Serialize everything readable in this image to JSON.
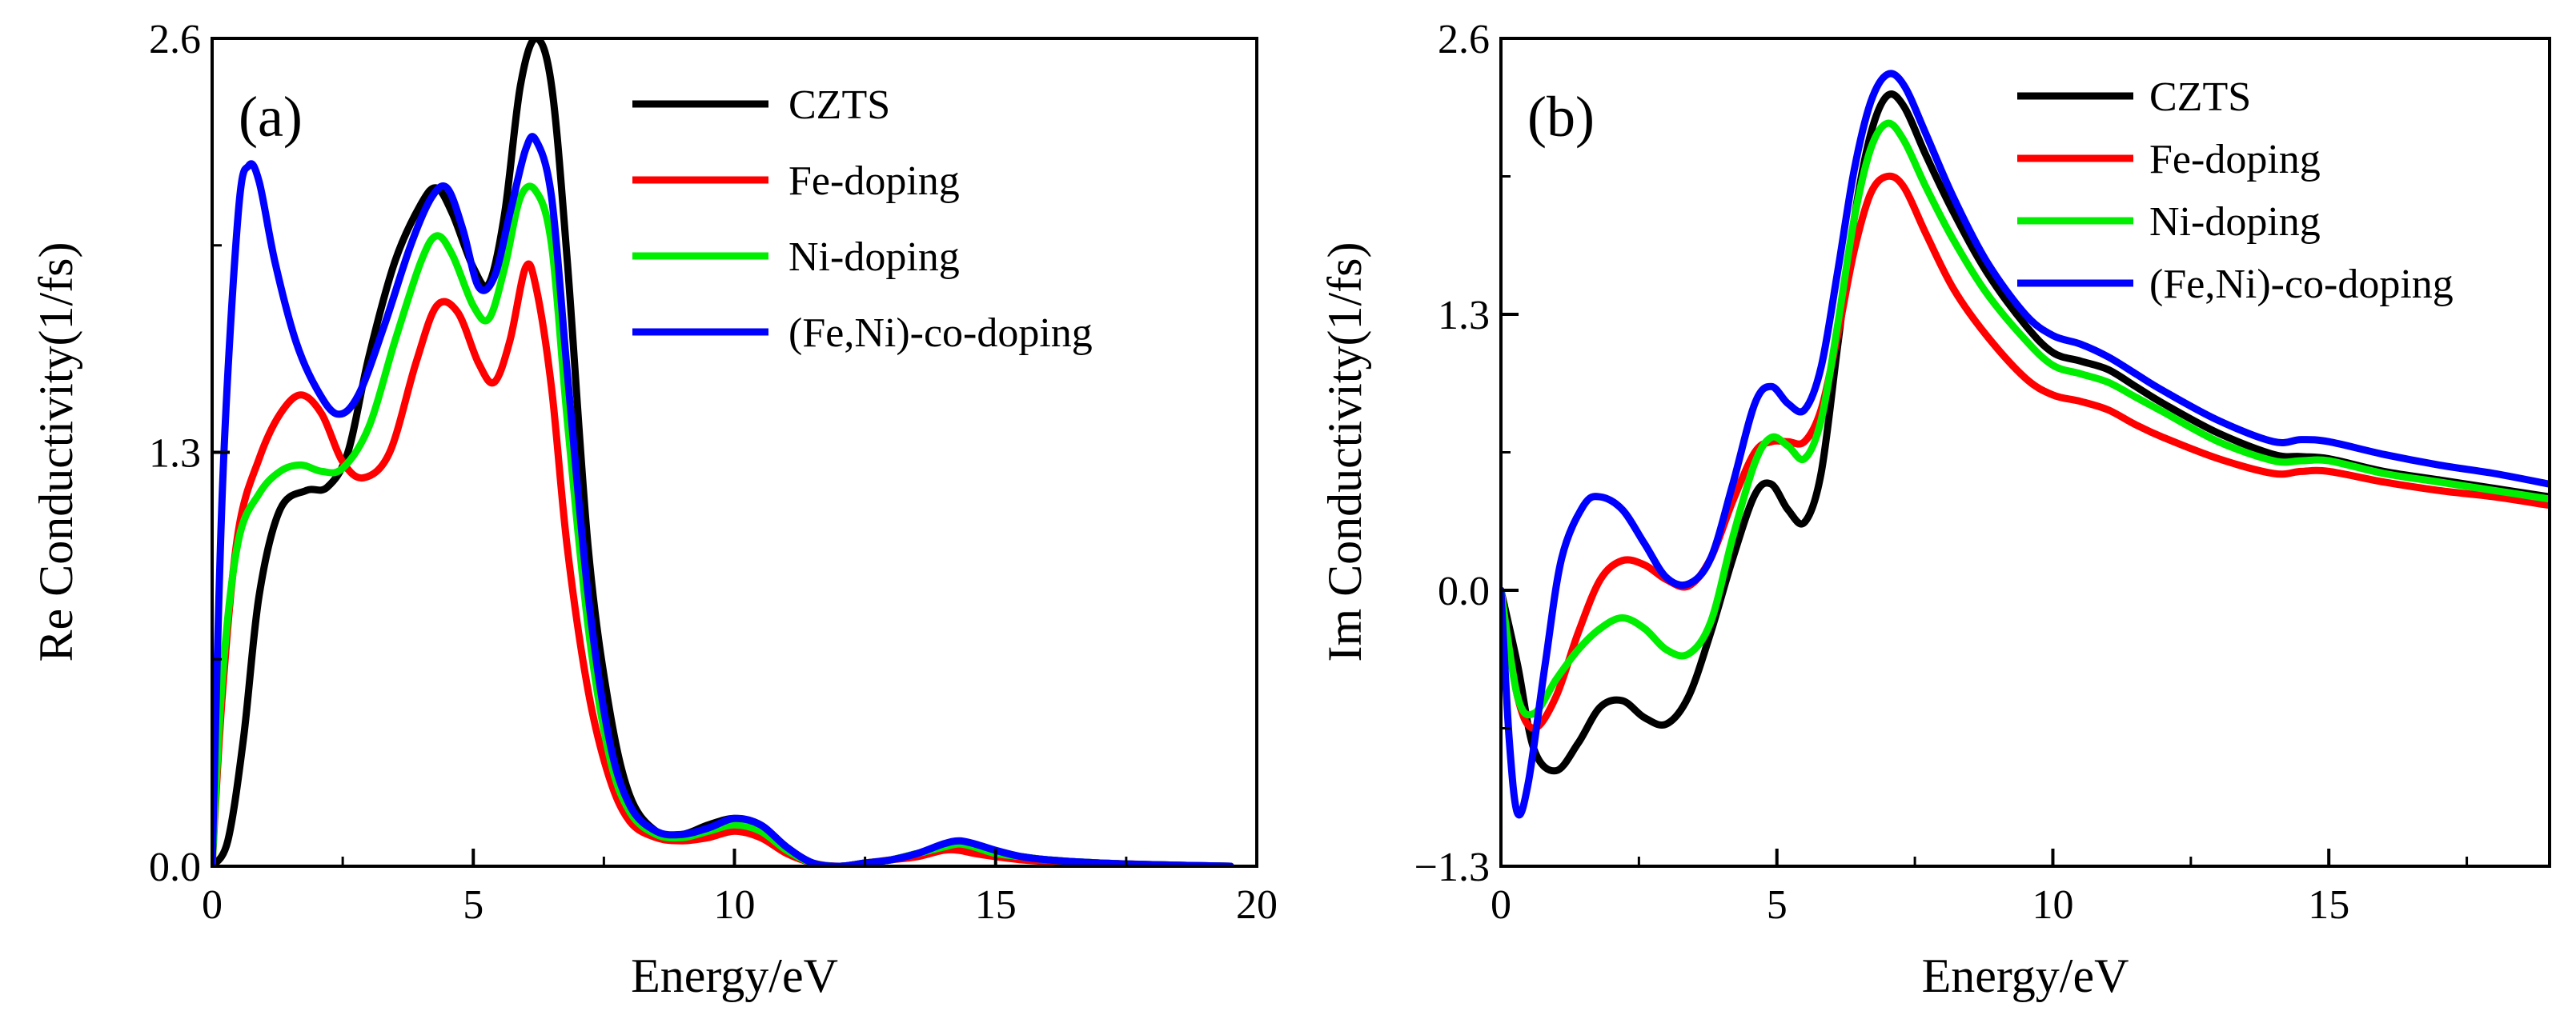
{
  "chart_data": [
    {
      "type": "line",
      "panel_label": "(a)",
      "xlabel": "Energy/eV",
      "ylabel": "Re Conductivity(1/fs)",
      "xlim": [
        0,
        20
      ],
      "ylim": [
        0,
        2.6
      ],
      "xticks": [
        0,
        5,
        10,
        15,
        20
      ],
      "yticks": [
        0.0,
        1.3,
        2.6
      ],
      "xtick_labels": [
        "0",
        "5",
        "10",
        "15",
        "20"
      ],
      "ytick_labels": [
        "0.0",
        "1.3",
        "2.6"
      ],
      "legend": "top-right",
      "grid": false,
      "series": [
        {
          "name": "CZTS",
          "color": "#000000",
          "x": [
            0,
            0.3,
            0.6,
            0.9,
            1.3,
            1.8,
            2.2,
            2.6,
            3.0,
            3.5,
            4.0,
            4.3,
            4.6,
            5.0,
            5.3,
            5.6,
            5.9,
            6.2,
            6.5,
            6.8,
            7.2,
            7.6,
            8.0,
            8.5,
            9.0,
            9.5,
            10.0,
            10.5,
            11.0,
            11.5,
            12.0,
            12.5,
            13.0,
            13.5,
            14.0,
            14.3,
            14.6,
            15.0,
            15.5,
            16.0,
            17.0,
            18.0,
            19.5
          ],
          "y": [
            0,
            0.08,
            0.4,
            0.85,
            1.12,
            1.18,
            1.19,
            1.3,
            1.6,
            1.9,
            2.08,
            2.13,
            2.05,
            1.88,
            1.83,
            2.05,
            2.45,
            2.6,
            2.45,
            1.9,
            1.0,
            0.5,
            0.22,
            0.11,
            0.1,
            0.13,
            0.15,
            0.13,
            0.06,
            0.01,
            0.0,
            0.01,
            0.02,
            0.04,
            0.06,
            0.07,
            0.06,
            0.04,
            0.03,
            0.02,
            0.01,
            0.005,
            0
          ]
        },
        {
          "name": "Fe-doping",
          "color": "#ff0000",
          "x": [
            0,
            0.2,
            0.5,
            0.9,
            1.3,
            1.7,
            2.1,
            2.5,
            2.9,
            3.4,
            3.9,
            4.3,
            4.7,
            5.1,
            5.4,
            5.7,
            6.0,
            6.2,
            6.5,
            6.8,
            7.2,
            7.6,
            8.0,
            8.5,
            9.0,
            9.5,
            10.0,
            10.5,
            11.0,
            11.5,
            12.0,
            12.5,
            13.0,
            13.5,
            14.0,
            14.3,
            14.6,
            15.0,
            15.5,
            16.0,
            17.0,
            18.0,
            19.5
          ],
          "y": [
            0,
            0.55,
            1.05,
            1.28,
            1.42,
            1.48,
            1.42,
            1.27,
            1.22,
            1.3,
            1.58,
            1.76,
            1.74,
            1.58,
            1.52,
            1.65,
            1.88,
            1.82,
            1.5,
            1.0,
            0.55,
            0.28,
            0.14,
            0.09,
            0.08,
            0.09,
            0.11,
            0.09,
            0.04,
            0.01,
            0.0,
            0.01,
            0.02,
            0.03,
            0.05,
            0.05,
            0.04,
            0.03,
            0.02,
            0.015,
            0.01,
            0.005,
            0
          ]
        },
        {
          "name": "Ni-doping",
          "color": "#00ee00",
          "x": [
            0,
            0.2,
            0.5,
            0.9,
            1.3,
            1.7,
            2.1,
            2.5,
            3.0,
            3.5,
            4.0,
            4.3,
            4.6,
            5.0,
            5.3,
            5.6,
            5.9,
            6.2,
            6.5,
            6.8,
            7.2,
            7.6,
            8.0,
            8.5,
            9.0,
            9.5,
            10.0,
            10.5,
            11.0,
            11.5,
            12.0,
            12.5,
            13.0,
            13.5,
            14.0,
            14.3,
            14.6,
            15.0,
            15.5,
            16.0,
            17.0,
            18.0,
            19.5
          ],
          "y": [
            0,
            0.6,
            1.02,
            1.17,
            1.24,
            1.26,
            1.24,
            1.25,
            1.38,
            1.65,
            1.9,
            1.98,
            1.92,
            1.76,
            1.72,
            1.88,
            2.1,
            2.12,
            1.95,
            1.4,
            0.75,
            0.35,
            0.17,
            0.1,
            0.09,
            0.11,
            0.13,
            0.11,
            0.05,
            0.01,
            0.0,
            0.01,
            0.02,
            0.04,
            0.06,
            0.07,
            0.06,
            0.04,
            0.03,
            0.02,
            0.01,
            0.005,
            0
          ]
        },
        {
          "name": "(Fe,Ni)-co-doping",
          "color": "#0000ff",
          "x": [
            0,
            0.2,
            0.5,
            0.7,
            0.9,
            1.2,
            1.6,
            2.0,
            2.4,
            2.8,
            3.3,
            3.8,
            4.2,
            4.5,
            4.8,
            5.1,
            5.4,
            5.7,
            6.0,
            6.2,
            6.5,
            6.8,
            7.2,
            7.6,
            8.0,
            8.5,
            9.0,
            9.5,
            10.0,
            10.5,
            11.0,
            11.5,
            12.0,
            12.5,
            13.0,
            13.5,
            14.0,
            14.3,
            14.6,
            15.0,
            15.5,
            16.0,
            17.0,
            18.0,
            19.5
          ],
          "y": [
            0,
            1.2,
            2.05,
            2.2,
            2.15,
            1.9,
            1.65,
            1.5,
            1.42,
            1.48,
            1.7,
            1.95,
            2.1,
            2.13,
            2.0,
            1.82,
            1.85,
            2.05,
            2.25,
            2.28,
            2.1,
            1.55,
            0.85,
            0.4,
            0.19,
            0.11,
            0.1,
            0.12,
            0.15,
            0.13,
            0.06,
            0.01,
            0.0,
            0.01,
            0.02,
            0.04,
            0.07,
            0.08,
            0.07,
            0.05,
            0.03,
            0.02,
            0.01,
            0.005,
            0
          ]
        }
      ]
    },
    {
      "type": "line",
      "panel_label": "(b)",
      "xlabel": "Energy/eV",
      "ylabel": "Im Conductivity(1/fs)",
      "xlim": [
        0,
        19
      ],
      "ylim": [
        -1.3,
        2.6
      ],
      "xticks": [
        0,
        5,
        10,
        15
      ],
      "yticks": [
        -1.3,
        0.0,
        1.3,
        2.6
      ],
      "xtick_labels": [
        "0",
        "5",
        "10",
        "15"
      ],
      "ytick_labels": [
        "−1.3",
        "0.0",
        "1.3",
        "2.6"
      ],
      "legend": "top-right",
      "grid": false,
      "series": [
        {
          "name": "CZTS",
          "color": "#000000",
          "x": [
            0,
            0.3,
            0.6,
            1.0,
            1.4,
            1.8,
            2.2,
            2.6,
            3.0,
            3.4,
            3.8,
            4.2,
            4.6,
            4.9,
            5.2,
            5.5,
            5.8,
            6.1,
            6.4,
            6.7,
            7.0,
            7.3,
            7.7,
            8.2,
            8.8,
            9.5,
            10.0,
            10.5,
            11.0,
            11.5,
            12.0,
            13.0,
            14.0,
            14.5,
            15.0,
            16.0,
            17.0,
            18.0,
            19.0
          ],
          "y": [
            0,
            -0.35,
            -0.75,
            -0.85,
            -0.72,
            -0.55,
            -0.52,
            -0.6,
            -0.63,
            -0.5,
            -0.2,
            0.15,
            0.45,
            0.5,
            0.38,
            0.32,
            0.55,
            1.15,
            1.75,
            2.15,
            2.33,
            2.28,
            2.05,
            1.78,
            1.5,
            1.25,
            1.12,
            1.08,
            1.04,
            0.96,
            0.88,
            0.74,
            0.64,
            0.63,
            0.62,
            0.56,
            0.52,
            0.48,
            0.44
          ]
        },
        {
          "name": "Fe-doping",
          "color": "#ff0000",
          "x": [
            0,
            0.3,
            0.6,
            1.0,
            1.4,
            1.8,
            2.2,
            2.6,
            3.0,
            3.4,
            3.8,
            4.2,
            4.6,
            4.9,
            5.2,
            5.5,
            5.8,
            6.1,
            6.4,
            6.7,
            7.0,
            7.3,
            7.7,
            8.2,
            8.8,
            9.5,
            10.0,
            10.5,
            11.0,
            11.5,
            12.0,
            13.0,
            14.0,
            14.5,
            15.0,
            16.0,
            17.0,
            18.0,
            19.0
          ],
          "y": [
            0,
            -0.5,
            -0.65,
            -0.5,
            -0.2,
            0.05,
            0.14,
            0.12,
            0.05,
            0.02,
            0.15,
            0.42,
            0.65,
            0.7,
            0.7,
            0.7,
            0.85,
            1.2,
            1.6,
            1.87,
            1.95,
            1.9,
            1.68,
            1.42,
            1.2,
            1.0,
            0.92,
            0.89,
            0.85,
            0.78,
            0.72,
            0.62,
            0.55,
            0.56,
            0.56,
            0.51,
            0.47,
            0.44,
            0.4
          ]
        },
        {
          "name": "Ni-doping",
          "color": "#00ee00",
          "x": [
            0,
            0.3,
            0.6,
            1.0,
            1.4,
            1.8,
            2.2,
            2.6,
            3.0,
            3.4,
            3.8,
            4.2,
            4.6,
            4.9,
            5.2,
            5.5,
            5.8,
            6.1,
            6.4,
            6.7,
            7.0,
            7.3,
            7.7,
            8.2,
            8.8,
            9.5,
            10.0,
            10.5,
            11.0,
            11.5,
            12.0,
            13.0,
            14.0,
            14.5,
            15.0,
            16.0,
            17.0,
            18.0,
            19.0
          ],
          "y": [
            0,
            -0.5,
            -0.58,
            -0.42,
            -0.28,
            -0.18,
            -0.13,
            -0.18,
            -0.28,
            -0.3,
            -0.15,
            0.25,
            0.6,
            0.72,
            0.68,
            0.62,
            0.8,
            1.25,
            1.75,
            2.08,
            2.2,
            2.12,
            1.9,
            1.65,
            1.4,
            1.18,
            1.06,
            1.02,
            0.98,
            0.91,
            0.84,
            0.7,
            0.61,
            0.61,
            0.61,
            0.55,
            0.51,
            0.47,
            0.43
          ]
        },
        {
          "name": "(Fe,Ni)-co-doping",
          "color": "#0000ff",
          "x": [
            0,
            0.15,
            0.3,
            0.5,
            0.8,
            1.1,
            1.5,
            1.8,
            2.2,
            2.6,
            3.0,
            3.4,
            3.8,
            4.2,
            4.6,
            4.9,
            5.2,
            5.5,
            5.8,
            6.1,
            6.4,
            6.7,
            7.0,
            7.3,
            7.7,
            8.2,
            8.8,
            9.5,
            10.0,
            10.5,
            11.0,
            11.5,
            12.0,
            13.0,
            14.0,
            14.5,
            15.0,
            16.0,
            17.0,
            18.0,
            19.0
          ],
          "y": [
            0,
            -0.7,
            -1.05,
            -0.9,
            -0.35,
            0.15,
            0.4,
            0.44,
            0.38,
            0.22,
            0.06,
            0.03,
            0.15,
            0.5,
            0.88,
            0.96,
            0.88,
            0.85,
            1.05,
            1.5,
            1.98,
            2.3,
            2.43,
            2.38,
            2.15,
            1.85,
            1.55,
            1.3,
            1.2,
            1.16,
            1.1,
            1.02,
            0.94,
            0.8,
            0.7,
            0.71,
            0.7,
            0.64,
            0.59,
            0.55,
            0.5
          ]
        }
      ]
    }
  ]
}
